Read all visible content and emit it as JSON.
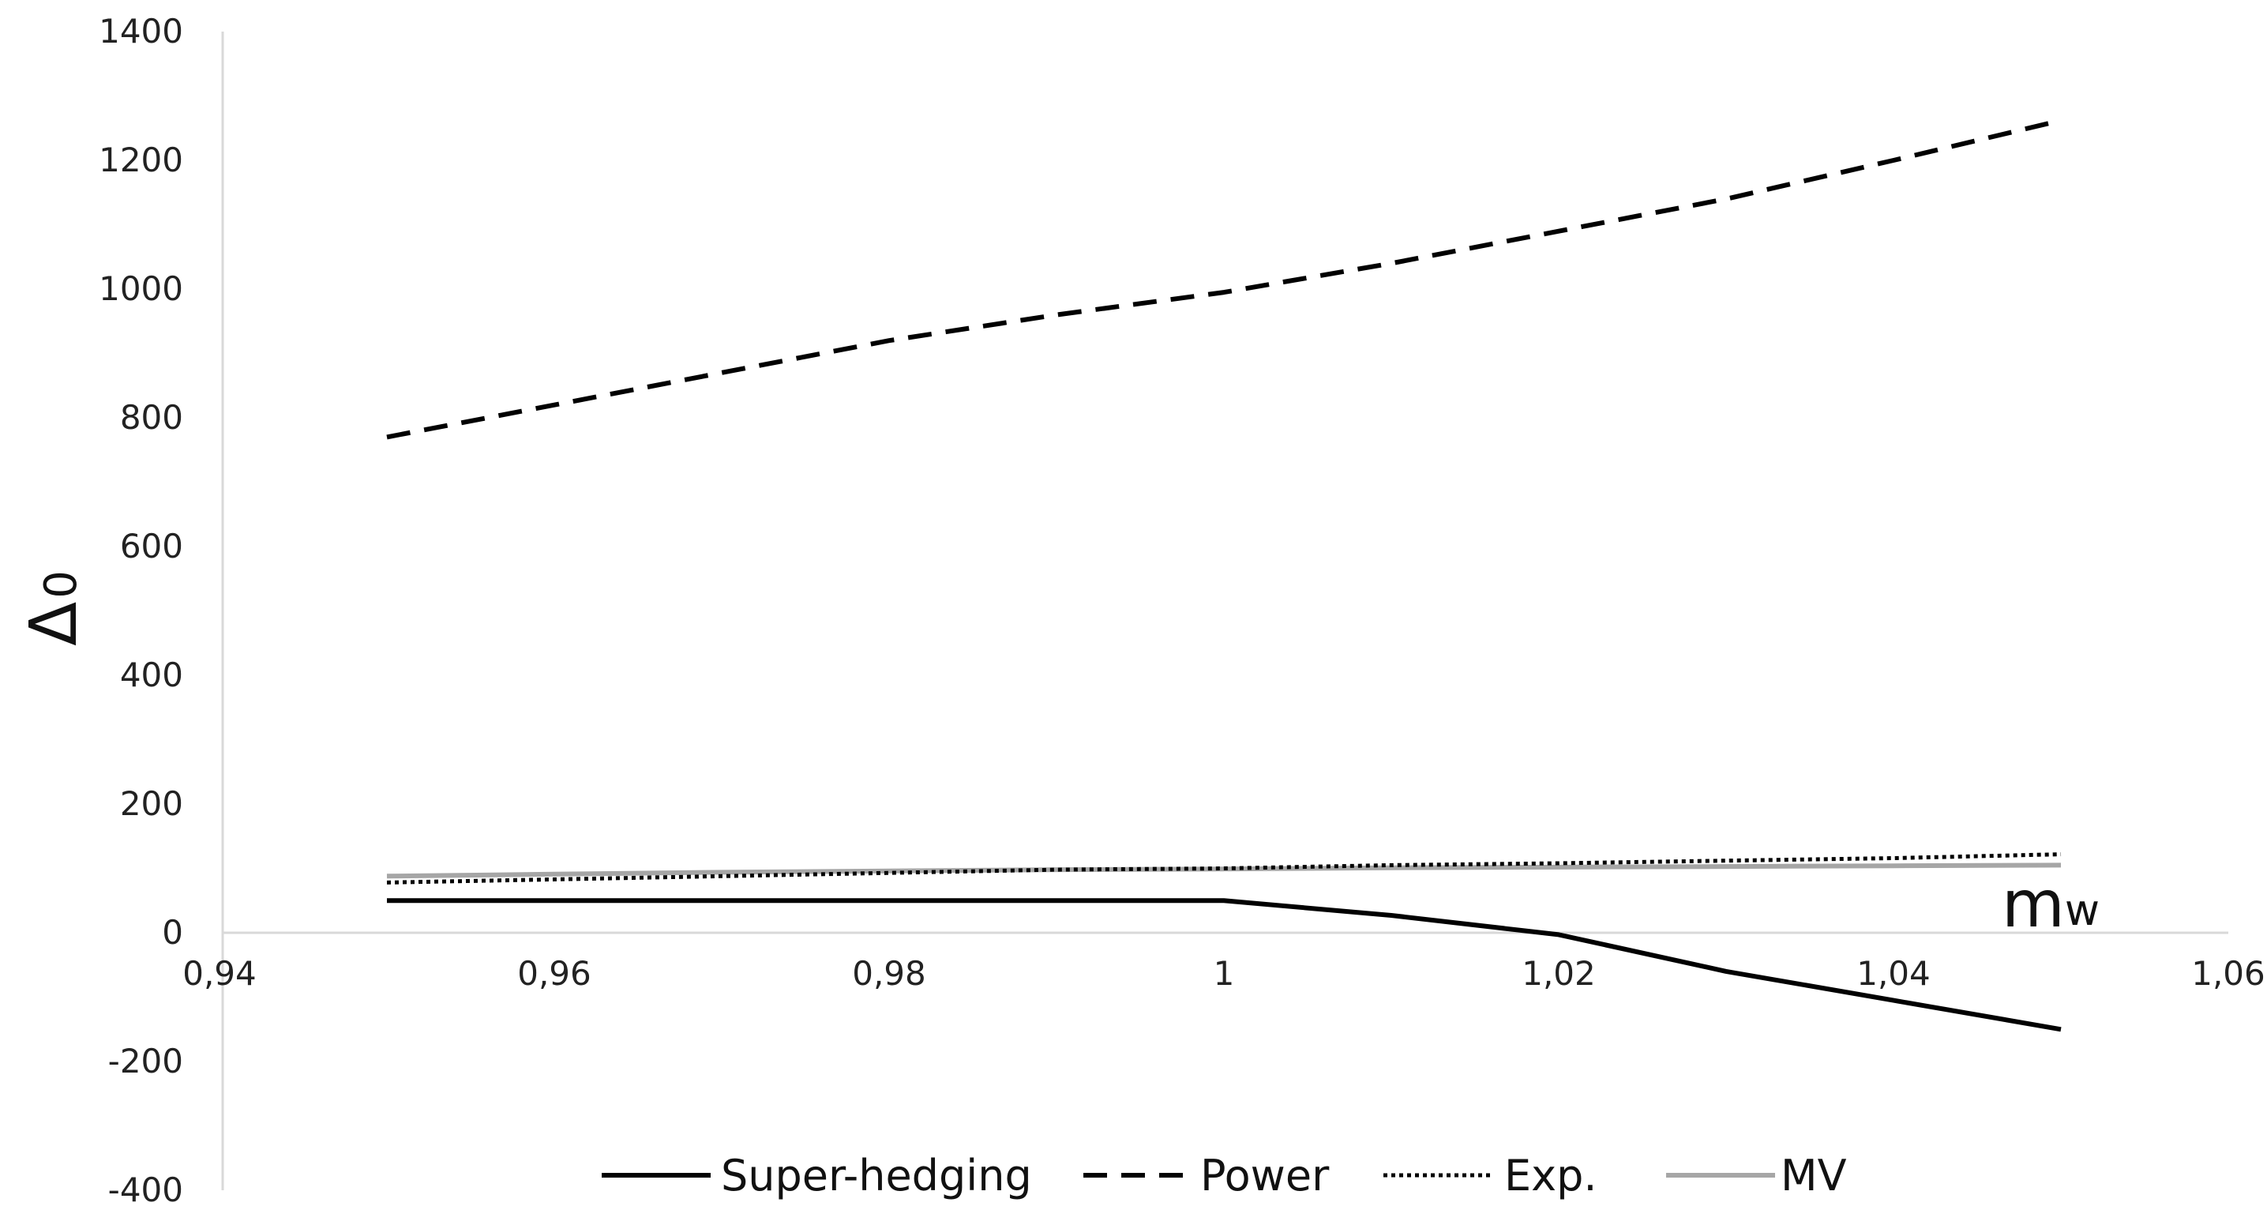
{
  "chart_data": {
    "type": "line",
    "title": "",
    "xlabel": "m",
    "xlabel_sub": "w",
    "ylabel": "Δ",
    "ylabel_sub": "0",
    "xlim": [
      0.94,
      1.06
    ],
    "ylim": [
      -400,
      1400
    ],
    "x_ticks": [
      "0,94",
      "0,96",
      "0,98",
      "1",
      "1,02",
      "1,04",
      "1,06"
    ],
    "x_tick_values": [
      0.94,
      0.96,
      0.98,
      1.0,
      1.02,
      1.04,
      1.06
    ],
    "y_ticks": [
      "1400",
      "1200",
      "1000",
      "800",
      "600",
      "400",
      "200",
      "0",
      "-200",
      "-400"
    ],
    "y_tick_values": [
      1400,
      1200,
      1000,
      800,
      600,
      400,
      200,
      0,
      -200,
      -400
    ],
    "x": [
      0.95,
      0.96,
      0.97,
      0.98,
      0.99,
      1.0,
      1.01,
      1.02,
      1.03,
      1.04,
      1.05
    ],
    "grid": false,
    "legend_position": "bottom",
    "series": [
      {
        "name": "Super-hedging",
        "style": "solid",
        "color": "#000000",
        "values": [
          50,
          50,
          50,
          50,
          50,
          50,
          27,
          -3,
          -60,
          -105,
          -150
        ]
      },
      {
        "name": "Power",
        "style": "dashed",
        "color": "#000000",
        "values": [
          770,
          820,
          870,
          920,
          960,
          995,
          1040,
          1090,
          1140,
          1200,
          1262
        ]
      },
      {
        "name": "Exp.",
        "style": "dotted",
        "color": "#000000",
        "values": [
          78,
          83,
          88,
          93,
          98,
          100,
          105,
          108,
          112,
          116,
          122
        ]
      },
      {
        "name": "MV",
        "style": "solid",
        "color": "#a6a6a6",
        "values": [
          88,
          91,
          94,
          96,
          98,
          99,
          101,
          102,
          103,
          104,
          105
        ]
      }
    ]
  }
}
